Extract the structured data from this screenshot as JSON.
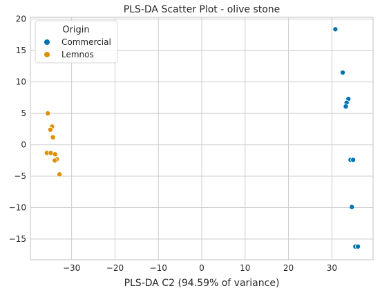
{
  "chart_data": {
    "type": "scatter",
    "title": "PLS-DA Scatter Plot - olive stone",
    "xlabel": "PLS-DA C2 (94.59% of variance)",
    "ylabel": "",
    "xlim": [
      -39.5,
      39.5
    ],
    "ylim": [
      -18.3,
      20.3
    ],
    "x_ticks": [
      -30,
      -20,
      -10,
      0,
      10,
      20,
      30
    ],
    "y_ticks": [
      -15,
      -10,
      -5,
      0,
      5,
      10,
      15,
      20
    ],
    "grid": true,
    "legend": {
      "title": "Origin",
      "placement": "top-left"
    },
    "series": [
      {
        "name": "Commercial",
        "color": "#0173b2",
        "points": [
          {
            "x": 30.8,
            "y": 18.4
          },
          {
            "x": 32.5,
            "y": 11.5
          },
          {
            "x": 33.8,
            "y": 7.3
          },
          {
            "x": 33.4,
            "y": 6.7
          },
          {
            "x": 33.2,
            "y": 6.1
          },
          {
            "x": 34.3,
            "y": -2.4
          },
          {
            "x": 34.9,
            "y": -2.4
          },
          {
            "x": 34.6,
            "y": -9.9
          },
          {
            "x": 35.4,
            "y": -16.2
          },
          {
            "x": 36.0,
            "y": -16.2
          }
        ]
      },
      {
        "name": "Lemnos",
        "color": "#de8f05",
        "points": [
          {
            "x": -35.5,
            "y": 5.0
          },
          {
            "x": -34.5,
            "y": 2.9
          },
          {
            "x": -34.9,
            "y": 2.4
          },
          {
            "x": -34.3,
            "y": 1.2
          },
          {
            "x": -35.7,
            "y": -1.3
          },
          {
            "x": -34.8,
            "y": -1.3
          },
          {
            "x": -33.8,
            "y": -1.5
          },
          {
            "x": -33.4,
            "y": -2.3
          },
          {
            "x": -33.9,
            "y": -2.5
          },
          {
            "x": -32.8,
            "y": -4.7
          }
        ]
      }
    ]
  }
}
